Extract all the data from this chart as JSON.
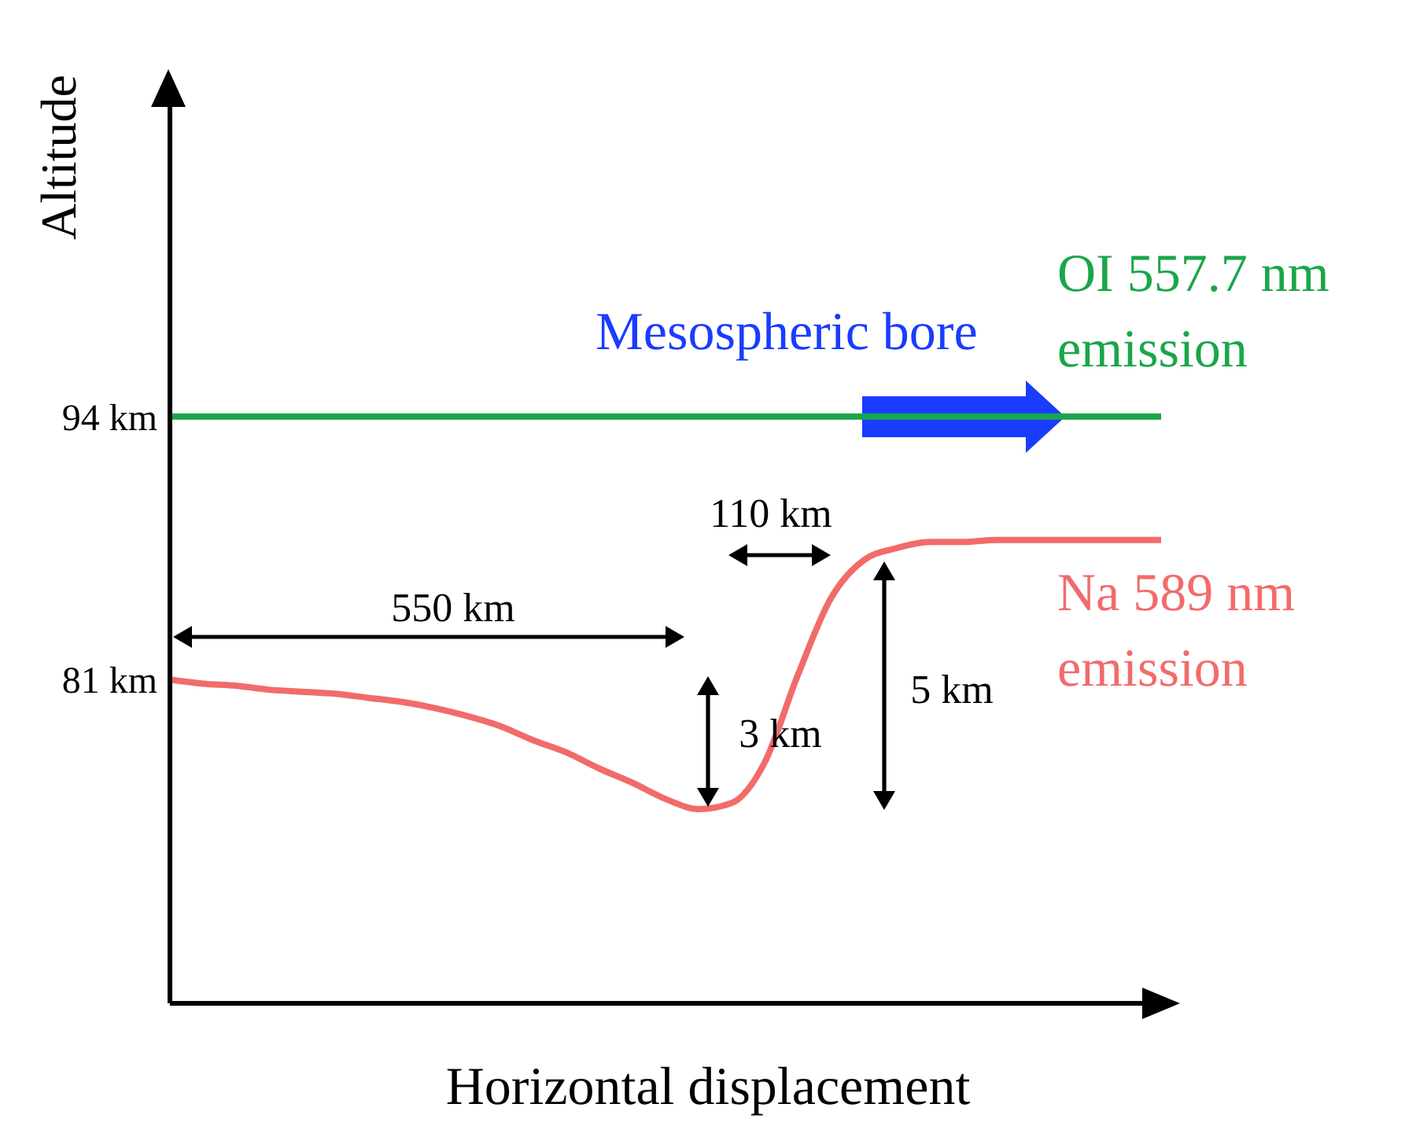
{
  "chart_data": {
    "type": "line",
    "xlabel": "Horizontal displacement",
    "ylabel": "Altitude",
    "categories": [
      null,
      null,
      null,
      null,
      null,
      null,
      null,
      null,
      null,
      null,
      null,
      null,
      null,
      null,
      null,
      null,
      null,
      null,
      null,
      null,
      null,
      null,
      null,
      null,
      null,
      null,
      null,
      null,
      null,
      null,
      null
    ],
    "series": [
      {
        "name": "OI 557.7 nm emission",
        "color": "#1aa64a",
        "values": [
          94,
          94,
          94,
          94,
          94,
          94,
          94,
          94,
          94,
          94,
          94,
          94,
          94,
          94,
          94,
          94,
          94,
          94,
          94,
          94,
          94,
          94,
          94,
          94,
          94,
          94,
          94,
          94,
          94,
          94,
          94
        ]
      },
      {
        "name": "Na 589 nm emission",
        "color": "#f26b6b",
        "values": [
          81,
          80.8,
          80.7,
          80.5,
          80.4,
          80.3,
          80.1,
          79.9,
          79.6,
          79.2,
          78.7,
          78,
          77.4,
          76.6,
          75.9,
          75.1,
          74.6,
          74.9,
          76.9,
          81.2,
          85,
          86.9,
          87.5,
          87.8,
          87.8,
          87.9,
          87.9,
          87.9,
          87.9,
          87.9,
          87.9
        ]
      }
    ],
    "ylim": [
      65,
      110
    ],
    "yticks": [
      {
        "value": 81,
        "label": "81 km"
      },
      {
        "value": 94,
        "label": "94 km"
      }
    ],
    "tick_labels": "y",
    "grid": false,
    "legend": false,
    "marker": "none",
    "line_style": "solid",
    "annotations": [
      "Mesospheric bore",
      "550 km",
      "110 km",
      "3 km",
      "5 km"
    ]
  }
}
